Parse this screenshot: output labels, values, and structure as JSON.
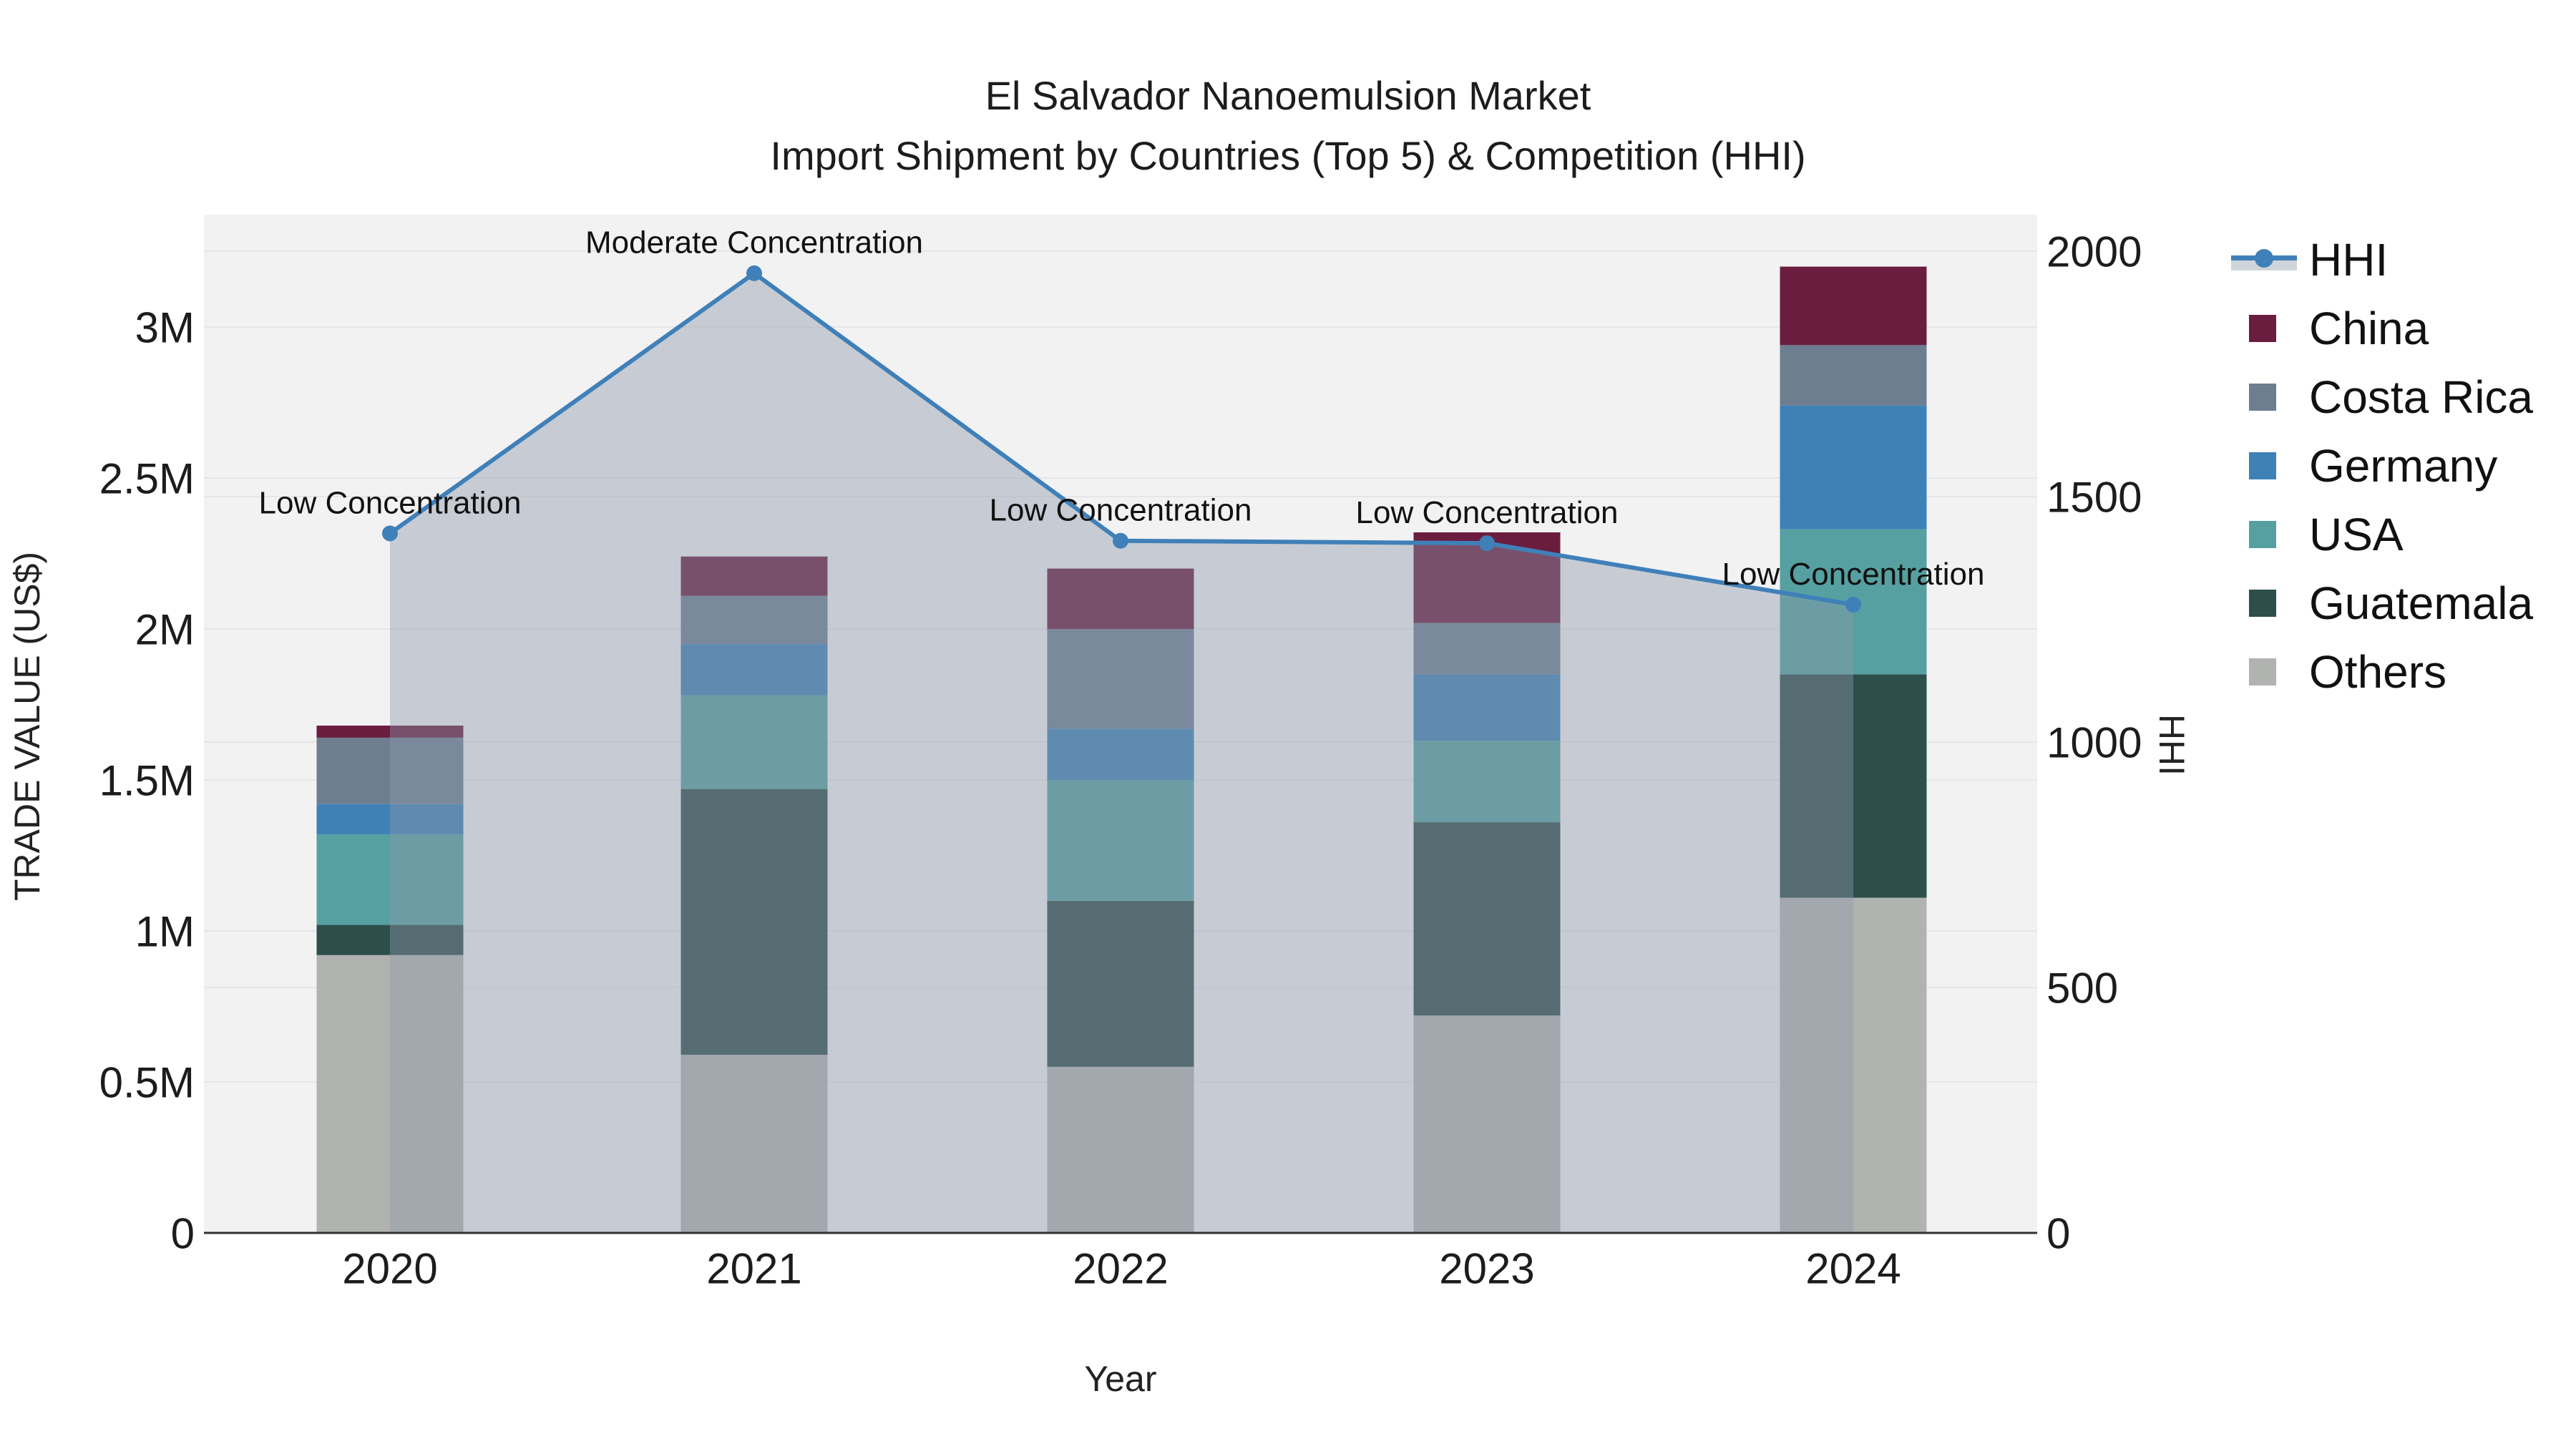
{
  "title": {
    "line1": "El Salvador Nanoemulsion Market",
    "line2": "Import Shipment by Countries (Top 5) & Competition (HHI)"
  },
  "axes": {
    "left": {
      "title": "TRADE VALUE (US$)",
      "tick_labels": [
        "0",
        "0.5M",
        "1M",
        "1.5M",
        "2M",
        "2.5M",
        "3M"
      ],
      "tick_values": [
        0,
        0.5,
        1,
        1.5,
        2,
        2.5,
        3
      ]
    },
    "right": {
      "title": "HHI",
      "tick_labels": [
        "0",
        "500",
        "1000",
        "1500",
        "2000"
      ],
      "tick_values": [
        0,
        500,
        1000,
        1500,
        2000
      ]
    },
    "x": {
      "title": "Year",
      "tick_labels": [
        "2020",
        "2021",
        "2022",
        "2023",
        "2024"
      ]
    }
  },
  "legend": {
    "items": [
      {
        "label": "HHI",
        "type": "line",
        "color": "#4080b8"
      },
      {
        "label": "China",
        "type": "swatch",
        "color": "#6b1d40"
      },
      {
        "label": "Costa Rica",
        "type": "swatch",
        "color": "#6d7e91"
      },
      {
        "label": "Germany",
        "type": "swatch",
        "color": "#3e81b7"
      },
      {
        "label": "USA",
        "type": "swatch",
        "color": "#56a0a1"
      },
      {
        "label": "Guatemala",
        "type": "swatch",
        "color": "#2d4f4b"
      },
      {
        "label": "Others",
        "type": "swatch",
        "color": "#b1b3b1"
      }
    ]
  },
  "chart_data": {
    "type": "bar+line",
    "title": "El Salvador Nanoemulsion Market Import Shipment by Countries (Top 5) & Competition (HHI)",
    "categories": [
      "2020",
      "2021",
      "2022",
      "2023",
      "2024"
    ],
    "bar_unit": "million US$",
    "stack_order_bottom_to_top": [
      "Others",
      "Guatemala",
      "USA",
      "Germany",
      "Costa Rica",
      "China"
    ],
    "series": [
      {
        "name": "Others",
        "color": "#b1b3b1",
        "values": [
          0.92,
          0.59,
          0.55,
          0.72,
          1.11
        ]
      },
      {
        "name": "Guatemala",
        "color": "#2d4f4b",
        "values": [
          0.1,
          0.88,
          0.55,
          0.64,
          0.74
        ]
      },
      {
        "name": "USA",
        "color": "#56a0a1",
        "values": [
          0.3,
          0.31,
          0.4,
          0.27,
          0.48
        ]
      },
      {
        "name": "Germany",
        "color": "#3e81b7",
        "values": [
          0.1,
          0.17,
          0.17,
          0.22,
          0.41
        ]
      },
      {
        "name": "Costa Rica",
        "color": "#6d7e91",
        "values": [
          0.22,
          0.16,
          0.33,
          0.17,
          0.2
        ]
      },
      {
        "name": "China",
        "color": "#6b1d40",
        "values": [
          0.04,
          0.13,
          0.2,
          0.3,
          0.26
        ]
      }
    ],
    "bar_totals": [
      1.68,
      2.24,
      2.2,
      2.32,
      3.2
    ],
    "hhi": {
      "name": "HHI",
      "values": [
        1425,
        1955,
        1410,
        1405,
        1280
      ],
      "line_color": "#4080b8",
      "area_fill": "rgba(140,152,170,0.42)"
    },
    "annotations": [
      {
        "category": "2020",
        "label": "Low Concentration"
      },
      {
        "category": "2021",
        "label": "Moderate Concentration"
      },
      {
        "category": "2022",
        "label": "Low Concentration"
      },
      {
        "category": "2023",
        "label": "Low Concentration"
      },
      {
        "category": "2024",
        "label": "Low Concentration"
      }
    ],
    "xlabel": "Year",
    "ylabel": "TRADE VALUE (US$)",
    "y2label": "HHI",
    "ylim_millions": [
      0,
      3.37
    ],
    "y2lim": [
      0,
      2074
    ],
    "grid": true,
    "legend_position": "right"
  },
  "colors": {
    "plot_background": "#f2f2f3",
    "page_background": "#ffffff",
    "gridline": "#e5e6e8",
    "axis_line": "#323232",
    "text": "#1c1c1c",
    "annotation_text": "#111111"
  }
}
